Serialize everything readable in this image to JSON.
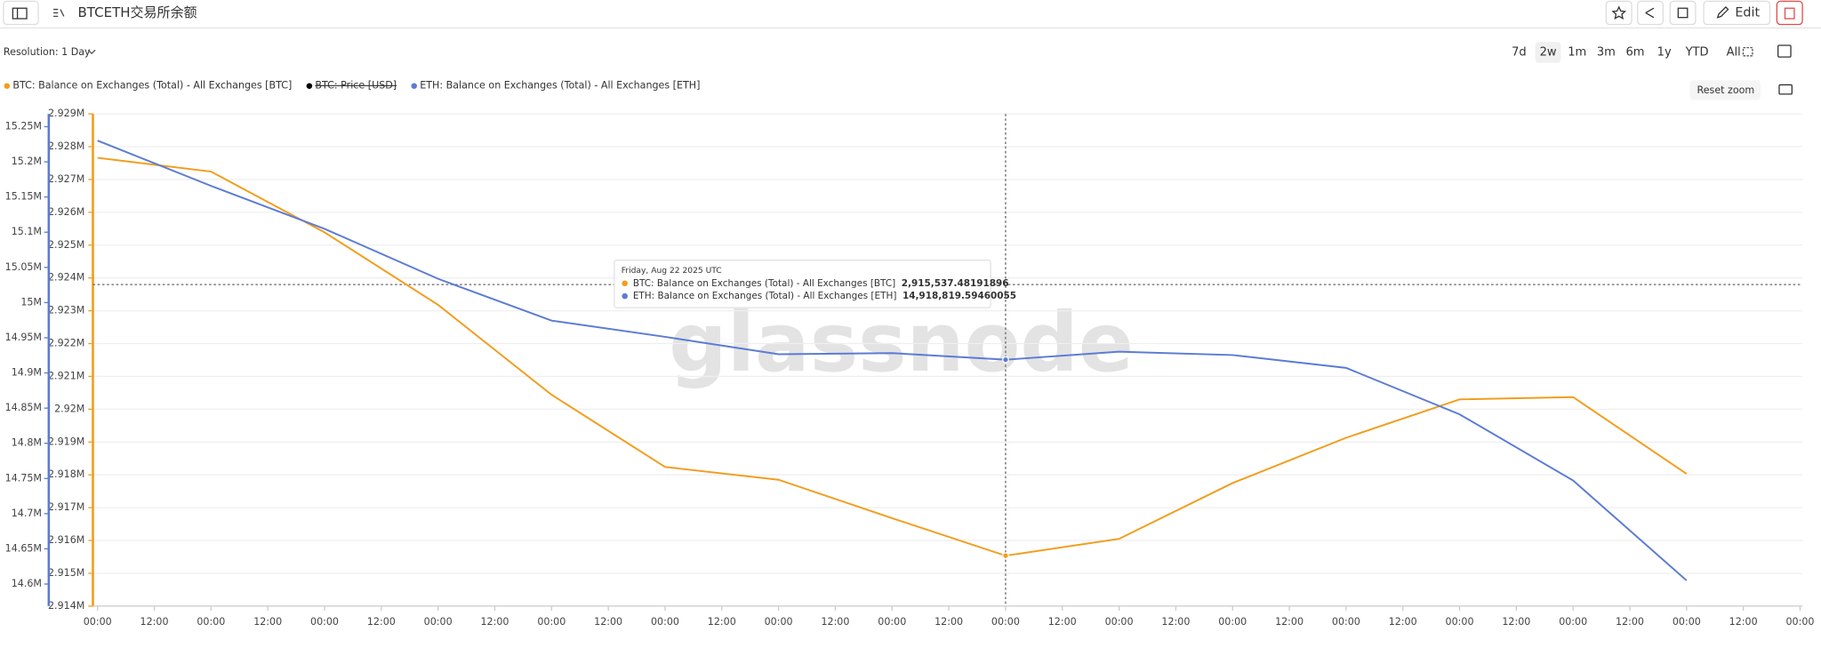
{
  "header": {
    "title": "BTCETH交易所余额",
    "edit": "Edit"
  },
  "controls": {
    "resolution": "Resolution: 1 Day",
    "ranges": [
      "7d",
      "2w",
      "1m",
      "3m",
      "6m",
      "1y",
      "YTD",
      "All"
    ],
    "active_range": "2w",
    "reset_zoom": "Reset zoom"
  },
  "watermark": "glassnode",
  "chart_data": {
    "type": "line",
    "x": [
      0,
      24,
      48,
      72,
      96,
      120,
      144,
      168,
      192,
      216,
      240,
      264,
      288,
      312,
      336
    ],
    "xlim": [
      0,
      360
    ],
    "xticks": [
      {
        "value": 0,
        "label": "00:00"
      },
      {
        "value": 12,
        "label": "12:00"
      },
      {
        "value": 24,
        "label": "00:00"
      },
      {
        "value": 36,
        "label": "12:00"
      },
      {
        "value": 48,
        "label": "00:00"
      },
      {
        "value": 60,
        "label": "12:00"
      },
      {
        "value": 72,
        "label": "00:00"
      },
      {
        "value": 84,
        "label": "12:00"
      },
      {
        "value": 96,
        "label": "00:00"
      },
      {
        "value": 108,
        "label": "12:00"
      },
      {
        "value": 120,
        "label": "00:00"
      },
      {
        "value": 132,
        "label": "12:00"
      },
      {
        "value": 144,
        "label": "00:00"
      },
      {
        "value": 156,
        "label": "12:00"
      },
      {
        "value": 168,
        "label": "00:00"
      },
      {
        "value": 180,
        "label": "12:00"
      },
      {
        "value": 192,
        "label": "00:00"
      },
      {
        "value": 204,
        "label": "12:00"
      },
      {
        "value": 216,
        "label": "00:00"
      },
      {
        "value": 228,
        "label": "12:00"
      },
      {
        "value": 240,
        "label": "00:00"
      },
      {
        "value": 252,
        "label": "12:00"
      },
      {
        "value": 264,
        "label": "00:00"
      },
      {
        "value": 276,
        "label": "12:00"
      },
      {
        "value": 288,
        "label": "00:00"
      },
      {
        "value": 300,
        "label": "12:00"
      },
      {
        "value": 312,
        "label": "00:00"
      },
      {
        "value": 324,
        "label": "12:00"
      },
      {
        "value": 336,
        "label": "00:00"
      },
      {
        "value": 348,
        "label": "12:00"
      },
      {
        "value": 360,
        "label": "00:00"
      }
    ],
    "ylim": [
      2914000,
      2929000
    ],
    "yticks": [
      {
        "value": 2929000,
        "label": "2.929M"
      },
      {
        "value": 2928000,
        "label": "2.928M"
      },
      {
        "value": 2927000,
        "label": "2.927M"
      },
      {
        "value": 2926000,
        "label": "2.926M"
      },
      {
        "value": 2925000,
        "label": "2.925M"
      },
      {
        "value": 2924000,
        "label": "2.924M"
      },
      {
        "value": 2923000,
        "label": "2.923M"
      },
      {
        "value": 2922000,
        "label": "2.922M"
      },
      {
        "value": 2921000,
        "label": "2.921M"
      },
      {
        "value": 2920000,
        "label": "2.92M"
      },
      {
        "value": 2919000,
        "label": "2.919M"
      },
      {
        "value": 2918000,
        "label": "2.918M"
      },
      {
        "value": 2917000,
        "label": "2.917M"
      },
      {
        "value": 2916000,
        "label": "2.916M"
      },
      {
        "value": 2915000,
        "label": "2.915M"
      },
      {
        "value": 2914000,
        "label": "2.914M"
      }
    ],
    "y2lim": [
      14568600,
      15268200
    ],
    "y2ticks": [
      {
        "value": 15250000,
        "label": "15.25M"
      },
      {
        "value": 15200000,
        "label": "15.2M"
      },
      {
        "value": 15150000,
        "label": "15.15M"
      },
      {
        "value": 15100000,
        "label": "15.1M"
      },
      {
        "value": 15050000,
        "label": "15.05M"
      },
      {
        "value": 15000000,
        "label": "15M"
      },
      {
        "value": 14950000,
        "label": "14.95M"
      },
      {
        "value": 14900000,
        "label": "14.9M"
      },
      {
        "value": 14850000,
        "label": "14.85M"
      },
      {
        "value": 14800000,
        "label": "14.8M"
      },
      {
        "value": 14750000,
        "label": "14.75M"
      },
      {
        "value": 14700000,
        "label": "14.7M"
      },
      {
        "value": 14650000,
        "label": "14.65M"
      },
      {
        "value": 14600000,
        "label": "14.6M"
      }
    ],
    "grid": true,
    "series": [
      {
        "name": "BTC: Balance on Exchanges (Total) - All Exchanges [BTC]",
        "color": "#f29d1d",
        "axis": "y",
        "values": [
          2927660,
          2927240,
          2925390,
          2923180,
          2920440,
          2918240,
          2917850,
          2916680,
          2915537.48191896,
          2916050,
          2917750,
          2919130,
          2920300,
          2920370,
          2918030
        ]
      },
      {
        "name": "BTC: Price [USD]",
        "color": "#000000",
        "hidden": true
      },
      {
        "name": "ETH: Balance on Exchanges (Total) - All Exchanges [ETH]",
        "color": "#5b7bd5",
        "axis": "y2",
        "values": [
          15230200,
          15165800,
          15104800,
          15033800,
          14974400,
          14951300,
          14926600,
          14928200,
          14918819.59460055,
          14930200,
          14925400,
          14907200,
          14841200,
          14747200,
          14605000
        ]
      }
    ],
    "tooltip": {
      "title": "Friday, Aug 22 2025 UTC",
      "index": 8,
      "items": [
        {
          "name": "BTC: Balance on Exchanges (Total) - All Exchanges [BTC]",
          "value": 2915537.48191896,
          "label": "2,915,537.48191896"
        },
        {
          "name": "ETH: Balance on Exchanges (Total) - All Exchanges [ETH]",
          "value": 14918819.59460055,
          "label": "14,918,819.59460055"
        }
      ]
    }
  }
}
